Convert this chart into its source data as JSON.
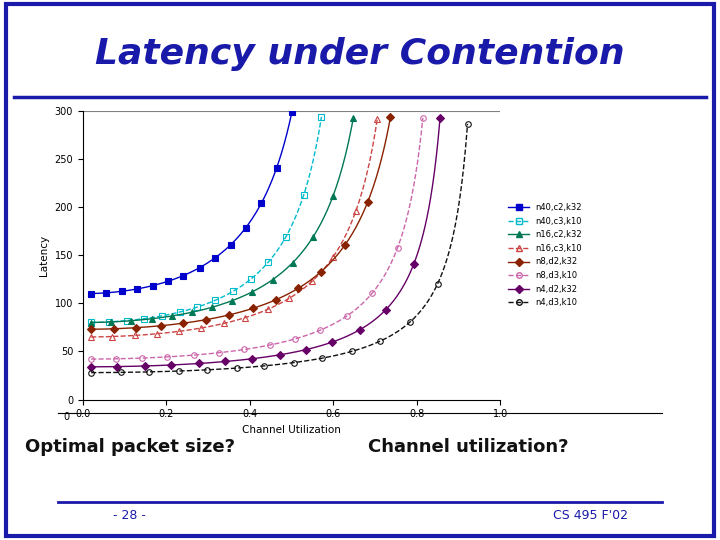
{
  "title": "Latency under Contention",
  "title_color": "#1a1aaa",
  "title_fontsize": 26,
  "xlabel": "Channel Utilization",
  "ylabel": "Latency",
  "xlim": [
    0,
    1.0
  ],
  "ylim": [
    0,
    300
  ],
  "yticks": [
    0,
    50,
    100,
    150,
    200,
    250,
    300
  ],
  "xticks": [
    0,
    0.2,
    0.4,
    0.6,
    0.8,
    1
  ],
  "footer_left": "- 28 -",
  "footer_right": "CS 495 F'02",
  "bottom_text_left": "Optimal packet size?",
  "bottom_text_right": "Channel utilization?",
  "background_color": "#ffffff",
  "border_color": "#1a1aaa",
  "series": [
    {
      "label": "n40,c2,k32",
      "color": "#0000cc",
      "linestyle": "-",
      "marker": "s",
      "fillstyle": "full",
      "base_latency": 110,
      "saturation": 0.63
    },
    {
      "label": "n40,c3,k10",
      "color": "#00bbcc",
      "linestyle": "--",
      "marker": "s",
      "fillstyle": "none",
      "base_latency": 80,
      "saturation": 0.67
    },
    {
      "label": "n16,c2,k32",
      "color": "#007755",
      "linestyle": "-",
      "marker": "^",
      "fillstyle": "full",
      "base_latency": 80,
      "saturation": 0.76
    },
    {
      "label": "n16,c3,k10",
      "color": "#cc4444",
      "linestyle": "--",
      "marker": "^",
      "fillstyle": "none",
      "base_latency": 65,
      "saturation": 0.8
    },
    {
      "label": "n8,d2,k32",
      "color": "#882200",
      "linestyle": "-",
      "marker": "D",
      "fillstyle": "full",
      "base_latency": 73,
      "saturation": 0.85
    },
    {
      "label": "n8,d3,k10",
      "color": "#cc66aa",
      "linestyle": "--",
      "marker": "o",
      "fillstyle": "none",
      "base_latency": 42,
      "saturation": 0.88
    },
    {
      "label": "n4,d2,k32",
      "color": "#660066",
      "linestyle": "-",
      "marker": "D",
      "fillstyle": "full",
      "base_latency": 34,
      "saturation": 0.91
    },
    {
      "label": "n4,d3,k10",
      "color": "#111111",
      "linestyle": "--",
      "marker": "o",
      "fillstyle": "none",
      "base_latency": 28,
      "saturation": 0.97
    }
  ]
}
